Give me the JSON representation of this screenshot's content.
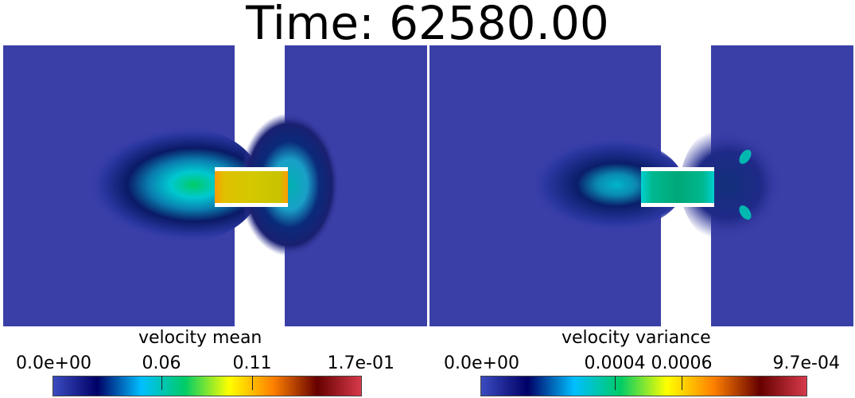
{
  "title": "Time: 62580.00",
  "colormap": {
    "stops": [
      "#3b4cc0",
      "#000066",
      "#00bfff",
      "#00cc66",
      "#ffff00",
      "#ff8000",
      "#660000",
      "#d73a4a"
    ]
  },
  "panels": [
    {
      "field": "velocity mean",
      "colorbar": {
        "labels": [
          "0.0e+00",
          "0.06",
          "0.11",
          "1.7e-01"
        ],
        "range": [
          0,
          0.17
        ]
      }
    },
    {
      "field": "velocity variance",
      "colorbar": {
        "labels": [
          "0.0e+00",
          "0.0004",
          "0.0006",
          "9.7e-04"
        ],
        "range": [
          0,
          0.00097
        ]
      }
    }
  ]
}
